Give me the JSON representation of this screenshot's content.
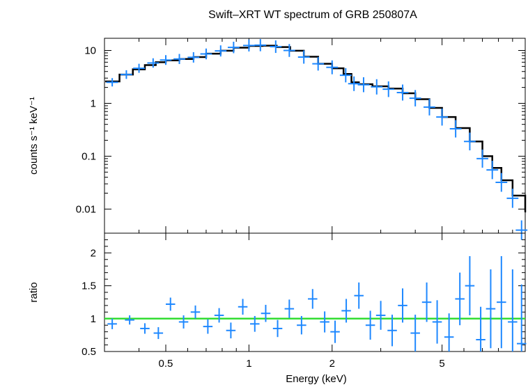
{
  "chart_data": [
    {
      "type": "scatter",
      "panel": "spectrum",
      "title": "Swift–XRT WT spectrum of GRB 250807A",
      "ylabel": "counts s⁻¹ keV⁻¹",
      "xlabel": "",
      "x_scale": "log",
      "y_scale": "log",
      "xlim": [
        0.3,
        10
      ],
      "ylim": [
        0.0035,
        17
      ],
      "y_tick_labels": [
        "10",
        "1",
        "0.1",
        "0.01"
      ],
      "y_ticks": [
        10,
        1,
        0.1,
        0.01
      ],
      "colors": {
        "data": "#1e88ff",
        "model": "#000000"
      },
      "series": [
        {
          "role": "data",
          "x": [
            0.32,
            0.36,
            0.4,
            0.45,
            0.5,
            0.56,
            0.63,
            0.7,
            0.79,
            0.88,
            1.0,
            1.1,
            1.25,
            1.4,
            1.58,
            1.78,
            2.0,
            2.24,
            2.4,
            2.6,
            2.9,
            3.2,
            3.6,
            4.0,
            4.5,
            5.0,
            5.6,
            6.3,
            7.0,
            7.6,
            8.2,
            9.0,
            9.7
          ],
          "y": [
            2.5,
            3.5,
            4.6,
            5.8,
            6.6,
            6.9,
            7.4,
            8.6,
            9.8,
            11.4,
            12.4,
            12.6,
            11.8,
            10.0,
            7.5,
            5.6,
            4.8,
            3.4,
            2.35,
            2.25,
            2.05,
            1.85,
            1.6,
            1.25,
            0.85,
            0.55,
            0.33,
            0.19,
            0.09,
            0.055,
            0.032,
            0.016,
            0.004
          ]
        },
        {
          "role": "model",
          "x": [
            0.3,
            0.34,
            0.38,
            0.42,
            0.46,
            0.5,
            0.56,
            0.63,
            0.7,
            0.79,
            0.88,
            1.0,
            1.12,
            1.26,
            1.41,
            1.58,
            1.78,
            2.0,
            2.2,
            2.35,
            2.5,
            2.8,
            3.2,
            3.6,
            4.0,
            4.5,
            5.0,
            5.6,
            6.3,
            7.0,
            7.6,
            8.2,
            9.0,
            10.0
          ],
          "y": [
            2.6,
            3.5,
            4.4,
            5.3,
            6.0,
            6.5,
            6.9,
            7.5,
            8.7,
            9.9,
            11.3,
            12.2,
            12.3,
            11.6,
            9.9,
            7.6,
            5.6,
            4.6,
            3.6,
            2.5,
            2.3,
            2.1,
            1.9,
            1.55,
            1.2,
            0.82,
            0.55,
            0.34,
            0.19,
            0.1,
            0.06,
            0.035,
            0.018,
            0.009
          ]
        }
      ]
    },
    {
      "type": "scatter",
      "panel": "ratio",
      "ylabel": "ratio",
      "xlabel": "Energy (keV)",
      "x_scale": "log",
      "xlim": [
        0.3,
        10
      ],
      "ylim": [
        0.5,
        2.3
      ],
      "x_ticks": [
        0.5,
        1,
        2,
        5
      ],
      "x_tick_labels": [
        "0.5",
        "1",
        "2",
        "5"
      ],
      "y_ticks": [
        0.5,
        1,
        1.5,
        2
      ],
      "y_tick_labels": [
        "0.5",
        "1",
        "1.5",
        "2"
      ],
      "colors": {
        "data": "#1e88ff",
        "reference_line": "#33dd33"
      },
      "reference_line": 1.0,
      "series": [
        {
          "role": "data",
          "x": [
            0.32,
            0.37,
            0.42,
            0.47,
            0.52,
            0.58,
            0.64,
            0.71,
            0.78,
            0.86,
            0.95,
            1.05,
            1.15,
            1.27,
            1.4,
            1.55,
            1.7,
            1.88,
            2.05,
            2.25,
            2.5,
            2.75,
            3.0,
            3.3,
            3.6,
            4.0,
            4.4,
            4.8,
            5.3,
            5.8,
            6.3,
            6.9,
            7.5,
            8.2,
            9.0,
            9.7
          ],
          "y": [
            0.92,
            0.98,
            0.85,
            0.78,
            1.22,
            0.95,
            1.1,
            0.88,
            1.05,
            0.82,
            1.18,
            0.92,
            1.08,
            0.85,
            1.15,
            0.9,
            1.3,
            0.95,
            0.8,
            1.12,
            1.35,
            0.9,
            1.05,
            0.82,
            1.2,
            0.78,
            1.25,
            0.95,
            0.72,
            1.3,
            1.5,
            0.68,
            1.15,
            1.25,
            0.95,
            0.62
          ],
          "err": [
            0.08,
            0.07,
            0.08,
            0.09,
            0.1,
            0.1,
            0.1,
            0.11,
            0.11,
            0.12,
            0.12,
            0.12,
            0.13,
            0.13,
            0.14,
            0.14,
            0.15,
            0.16,
            0.17,
            0.18,
            0.2,
            0.22,
            0.22,
            0.24,
            0.26,
            0.28,
            0.3,
            0.33,
            0.36,
            0.4,
            0.45,
            0.5,
            0.6,
            0.7,
            0.8,
            0.9
          ]
        }
      ]
    }
  ]
}
